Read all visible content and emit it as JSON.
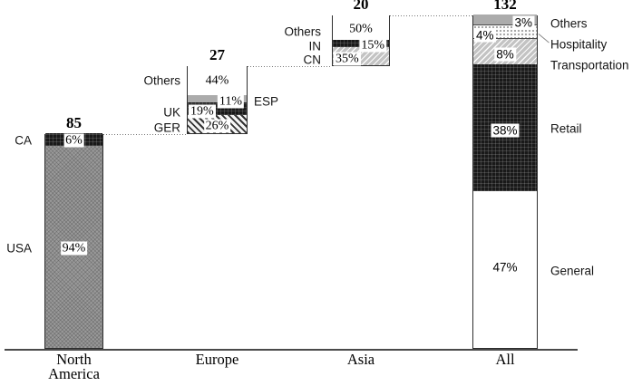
{
  "figure": {
    "background": "#ffffff"
  },
  "colors": {
    "solid_gray": "#ababab",
    "usa_gray": "#9a9a9a",
    "black_fill": "#191919",
    "light_hatch_gray": "#c3c3c3",
    "white": "#ffffff",
    "axis": "#4a4a4a",
    "text": "#111111"
  },
  "chart_data": {
    "type": "bar",
    "subtype": "stacked-percent-waterfall",
    "categories": [
      "North\nAmerica",
      "Europe",
      "Asia",
      "All"
    ],
    "totals": [
      85,
      27,
      20,
      132
    ],
    "ylim": [
      0,
      132
    ],
    "grid": false,
    "legend_position": "labels-adjacent-to-bars",
    "connectors": "dotted line from each bar top to base of next bar",
    "bars": [
      {
        "category": "North\nAmerica",
        "total": 85,
        "base": 0,
        "value_font": "serif",
        "ext_gap": 14,
        "segments": [
          {
            "name": "USA",
            "pct": 94,
            "pattern": "gray-dots",
            "value_label": "94%",
            "value_pos": "center",
            "ext_label": "USA",
            "ext_side": "left"
          },
          {
            "name": "CA",
            "pct": 6,
            "pattern": "black-grid",
            "value_label": "6%",
            "value_pos": "center",
            "ext_label": "CA",
            "ext_side": "left"
          }
        ]
      },
      {
        "category": "Europe",
        "total": 27,
        "base": 85,
        "value_font": "serif",
        "ext_gap": 7,
        "segments": [
          {
            "name": "GER",
            "pct": 26,
            "pattern": "diag-dark",
            "value_label": "26%",
            "value_pos": "center",
            "value_dy": 1,
            "ext_label": "GER",
            "ext_side": "left",
            "ext_dy": 3
          },
          {
            "name": "UK",
            "pct": 19,
            "pattern": "black-grid",
            "value_label": "19%",
            "value_pos": "left",
            "value_dy": 2,
            "ext_label": "UK",
            "ext_side": "left",
            "ext_dy": 3
          },
          {
            "name": "ESP",
            "pct": 11,
            "pattern": "gray-solid",
            "value_label": "11%",
            "value_pos": "right",
            "value_dy": 2,
            "ext_label": "ESP",
            "ext_side": "right",
            "ext_dy": 2
          },
          {
            "name": "Others",
            "pct": 44,
            "pattern": "white",
            "value_label": "44%",
            "value_pos": "center",
            "ext_label": "Others",
            "ext_side": "left"
          }
        ]
      },
      {
        "category": "Asia",
        "total": 20,
        "base": 112,
        "value_font": "serif",
        "ext_gap": 12,
        "segments": [
          {
            "name": "CN",
            "pct": 35,
            "pattern": "diag-gray",
            "value_label": "35%",
            "value_pos": "left",
            "value_dy": 2,
            "ext_label": "CN",
            "ext_side": "left",
            "ext_dy": 3
          },
          {
            "name": "IN",
            "pct": 15,
            "pattern": "black-grid",
            "value_label": "15%",
            "value_pos": "right",
            "value_dy": 1,
            "ext_label": "IN",
            "ext_side": "left",
            "ext_dy": 2
          },
          {
            "name": "Others",
            "pct": 50,
            "pattern": "white",
            "value_label": "50%",
            "value_pos": "center",
            "value_dy": 1,
            "ext_label": "Others",
            "ext_side": "left",
            "ext_dy": 4
          }
        ]
      },
      {
        "category": "All",
        "total": 132,
        "base": 0,
        "value_font": "sans",
        "ext_gap": 14,
        "segments": [
          {
            "name": "General",
            "pct": 47,
            "pattern": "white",
            "value_label": "47%",
            "value_pos": "center",
            "value_dy": -4,
            "ext_label": "General",
            "ext_side": "right"
          },
          {
            "name": "Retail",
            "pct": 38,
            "pattern": "black-grid",
            "value_label": "38%",
            "value_pos": "center",
            "value_dy": 2,
            "ext_label": "Retail",
            "ext_side": "right"
          },
          {
            "name": "Transportation",
            "pct": 8,
            "pattern": "diag-gray",
            "value_label": "8%",
            "value_pos": "center",
            "value_dy": 3,
            "ext_label": "Transportation",
            "ext_side": "right",
            "ext_dy": 15,
            "divider_top": true
          },
          {
            "name": "Hospitality",
            "pct": 4,
            "pattern": "dots-light",
            "value_label": "4%",
            "value_pos": "left",
            "value_dy": 4,
            "ext_label": "Hospitality",
            "ext_side": "right",
            "ext_dy": 14,
            "divider_top": true,
            "pointer": true
          },
          {
            "name": "Others",
            "pct": 3,
            "pattern": "gray-solid",
            "value_label": "3%",
            "value_pos": "right",
            "value_dy": 2,
            "ext_label": "Others",
            "ext_side": "right",
            "ext_dy": 3
          }
        ]
      }
    ]
  }
}
